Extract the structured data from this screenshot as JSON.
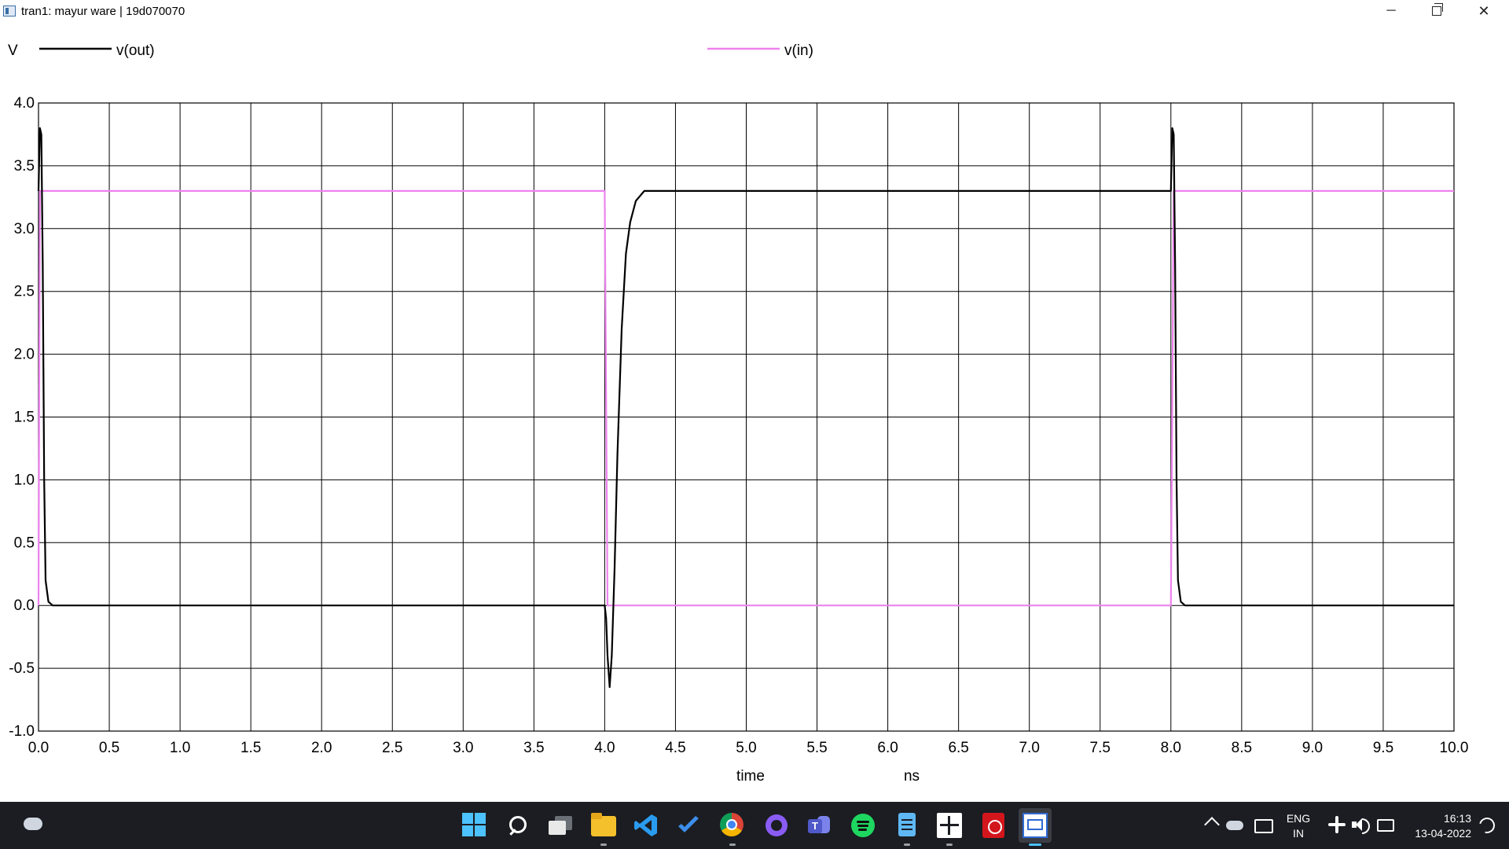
{
  "window": {
    "title": "tran1: mayur ware | 19d070070",
    "minimize": "─",
    "close": "✕"
  },
  "chart_data": {
    "type": "line",
    "ylabel": "V",
    "xlabel": "time",
    "xunit": "ns",
    "xlim": [
      0,
      10
    ],
    "ylim": [
      -1,
      4
    ],
    "x_ticks": [
      "0.0",
      "0.5",
      "1.0",
      "1.5",
      "2.0",
      "2.5",
      "3.0",
      "3.5",
      "4.0",
      "4.5",
      "5.0",
      "5.5",
      "6.0",
      "6.5",
      "7.0",
      "7.5",
      "8.0",
      "8.5",
      "9.0",
      "9.5",
      "10.0"
    ],
    "y_ticks": [
      "4.0",
      "3.5",
      "3.0",
      "2.5",
      "2.0",
      "1.5",
      "1.0",
      "0.5",
      "0.0",
      "-0.5",
      "-1.0"
    ],
    "grid": true,
    "legend_position": "top",
    "series": [
      {
        "name": "v(out)",
        "color": "#000000",
        "points": [
          [
            0,
            3.3
          ],
          [
            0.01,
            3.8
          ],
          [
            0.02,
            3.75
          ],
          [
            0.03,
            2.7
          ],
          [
            0.04,
            1.0
          ],
          [
            0.05,
            0.2
          ],
          [
            0.07,
            0.03
          ],
          [
            0.1,
            0
          ],
          [
            4.0,
            0
          ],
          [
            4.01,
            -0.1
          ],
          [
            4.02,
            -0.4
          ],
          [
            4.035,
            -0.65
          ],
          [
            4.05,
            -0.4
          ],
          [
            4.07,
            0.3
          ],
          [
            4.09,
            1.2
          ],
          [
            4.12,
            2.2
          ],
          [
            4.15,
            2.8
          ],
          [
            4.18,
            3.05
          ],
          [
            4.22,
            3.22
          ],
          [
            4.28,
            3.3
          ],
          [
            8.0,
            3.3
          ],
          [
            8.01,
            3.8
          ],
          [
            8.02,
            3.75
          ],
          [
            8.03,
            2.7
          ],
          [
            8.04,
            1.0
          ],
          [
            8.05,
            0.2
          ],
          [
            8.07,
            0.03
          ],
          [
            8.1,
            0
          ],
          [
            10.0,
            0
          ]
        ]
      },
      {
        "name": "v(in)",
        "color": "#ee82ee",
        "points": [
          [
            0,
            0
          ],
          [
            0.01,
            3.3
          ],
          [
            4.0,
            3.3
          ],
          [
            4.02,
            0
          ],
          [
            8.0,
            0
          ],
          [
            8.02,
            3.3
          ],
          [
            10.0,
            3.3
          ]
        ]
      }
    ]
  },
  "taskbar": {
    "apps": [
      "search-icon",
      "task-view-icon",
      "file-explorer-icon",
      "vscode-icon",
      "todo-icon",
      "chrome-icon",
      "github-icon",
      "teams-icon",
      "spotify-icon",
      "notepad-icon",
      "circuit-icon",
      "pdf-icon",
      "ngspice-icon"
    ],
    "lang_top": "ENG",
    "lang_bottom": "IN",
    "time": "16:13",
    "date": "13-04-2022"
  }
}
